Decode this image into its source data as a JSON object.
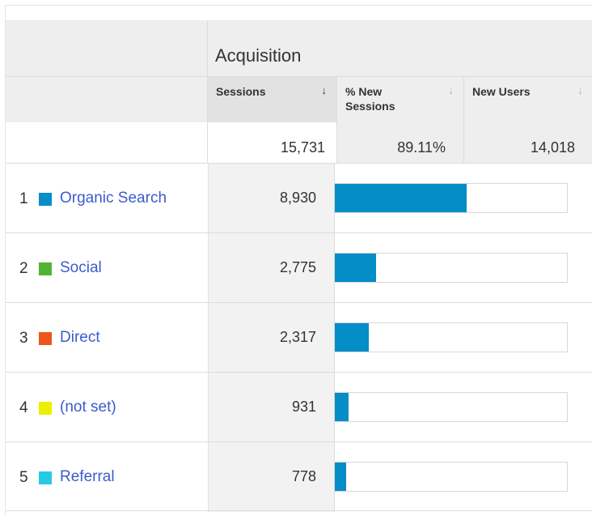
{
  "header": {
    "group_title": "Acquisition",
    "columns": [
      {
        "label": "Sessions",
        "sort_indicator": "↓",
        "active": true
      },
      {
        "label": "% New Sessions",
        "sort_indicator": "↓",
        "active": false
      },
      {
        "label": "New Users",
        "sort_indicator": "↓",
        "active": false
      }
    ]
  },
  "totals": {
    "sessions": "15,731",
    "pct_new_sessions": "89.11%",
    "new_users": "14,018"
  },
  "rows": [
    {
      "index": "1",
      "name": "Organic Search",
      "color": "#058dc7",
      "sessions_text": "8,930",
      "sessions": 8930,
      "share": 0.5676
    },
    {
      "index": "2",
      "name": "Social",
      "color": "#50b432",
      "sessions_text": "2,775",
      "sessions": 2775,
      "share": 0.1764
    },
    {
      "index": "3",
      "name": "Direct",
      "color": "#ed561b",
      "sessions_text": "2,317",
      "sessions": 2317,
      "share": 0.1473
    },
    {
      "index": "4",
      "name": "(not set)",
      "color": "#edef00",
      "sessions_text": "931",
      "sessions": 931,
      "share": 0.0592
    },
    {
      "index": "5",
      "name": "Referral",
      "color": "#24cbe5",
      "sessions_text": "778",
      "sessions": 778,
      "share": 0.0495
    }
  ],
  "colors": {
    "bar": "#058dc7",
    "link": "#3b5ccc"
  }
}
